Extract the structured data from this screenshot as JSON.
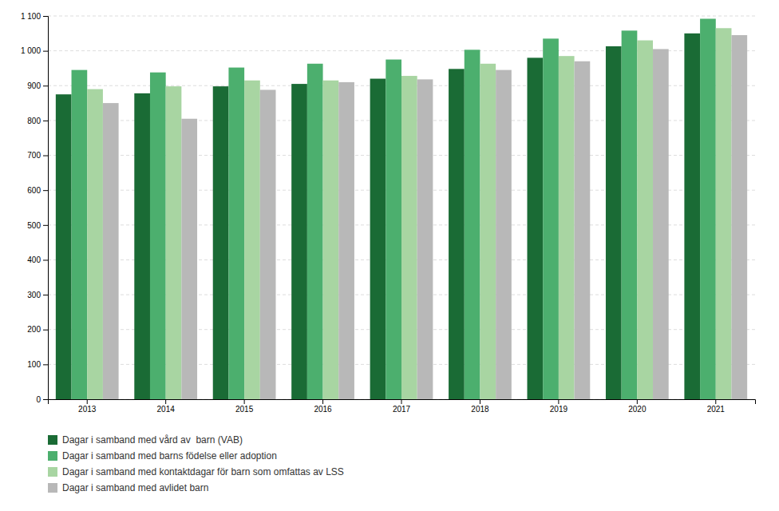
{
  "chart_data": {
    "type": "bar",
    "categories": [
      "2013",
      "2014",
      "2015",
      "2016",
      "2017",
      "2018",
      "2019",
      "2020",
      "2021"
    ],
    "series": [
      {
        "name": "Dagar i samband med vård av  barn (VAB)",
        "color": "#1a6b35",
        "values": [
          875,
          878,
          898,
          905,
          920,
          948,
          980,
          1013,
          1050
        ]
      },
      {
        "name": "Dagar i samband med barns födelse eller adoption",
        "color": "#4caf6e",
        "values": [
          945,
          938,
          952,
          963,
          975,
          1003,
          1035,
          1058,
          1092
        ]
      },
      {
        "name": "Dagar i samband med kontaktdagar för barn som omfattas av LSS",
        "color": "#a8d5a2",
        "values": [
          890,
          898,
          915,
          915,
          928,
          963,
          985,
          1030,
          1065
        ]
      },
      {
        "name": "Dagar i samband med avlidet barn",
        "color": "#b8b8b8",
        "values": [
          850,
          805,
          888,
          910,
          918,
          945,
          970,
          1005,
          1045
        ]
      }
    ],
    "ylim": [
      0,
      1100
    ],
    "yticks": [
      0,
      100,
      200,
      300,
      400,
      500,
      600,
      700,
      800,
      900,
      {
        "value": 1000,
        "label": "1 000"
      },
      {
        "value": 1100,
        "label": "1 100"
      }
    ],
    "grid": true,
    "legend": "bottom"
  }
}
